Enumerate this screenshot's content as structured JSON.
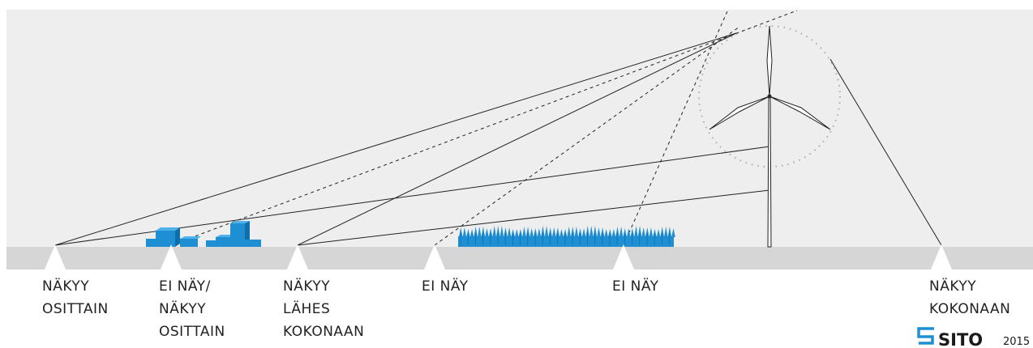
{
  "observers": [
    {
      "id": "obs1",
      "lines": [
        "NÄKYY",
        "OSITTAIN"
      ]
    },
    {
      "id": "obs2",
      "lines": [
        "EI NÄY/",
        "NÄKYY",
        "OSITTAIN"
      ]
    },
    {
      "id": "obs3",
      "lines": [
        "NÄKYY",
        "LÄHES",
        "KOKONAAN"
      ]
    },
    {
      "id": "obs4",
      "lines": [
        "EI NÄY"
      ]
    },
    {
      "id": "obs5",
      "lines": [
        "EI NÄY"
      ]
    },
    {
      "id": "obs6",
      "lines": [
        "NÄKYY",
        "KOKONAAN"
      ]
    }
  ],
  "logo": {
    "text": "SITO",
    "year": "2015"
  },
  "colors": {
    "sky": "#eeeeee",
    "ground": "#d6d6d6",
    "obstacle": "#1e8fd2",
    "obstacle_dark": "#0f6fad",
    "obstacle_light": "#4fb3ea",
    "logo_accent": "#1e8fd2",
    "line": "#222222",
    "rotor_circle": "#aaaaaa"
  }
}
